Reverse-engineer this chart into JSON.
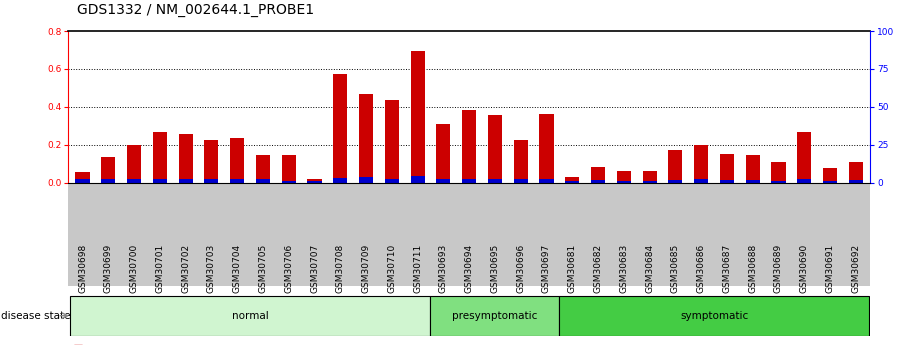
{
  "title": "GDS1332 / NM_002644.1_PROBE1",
  "samples": [
    "GSM30698",
    "GSM30699",
    "GSM30700",
    "GSM30701",
    "GSM30702",
    "GSM30703",
    "GSM30704",
    "GSM30705",
    "GSM30706",
    "GSM30707",
    "GSM30708",
    "GSM30709",
    "GSM30710",
    "GSM30711",
    "GSM30693",
    "GSM30694",
    "GSM30695",
    "GSM30696",
    "GSM30697",
    "GSM30681",
    "GSM30682",
    "GSM30683",
    "GSM30684",
    "GSM30685",
    "GSM30686",
    "GSM30687",
    "GSM30688",
    "GSM30689",
    "GSM30690",
    "GSM30691",
    "GSM30692"
  ],
  "red_values": [
    0.055,
    0.135,
    0.2,
    0.27,
    0.26,
    0.225,
    0.235,
    0.145,
    0.145,
    0.022,
    0.575,
    0.47,
    0.435,
    0.695,
    0.31,
    0.385,
    0.355,
    0.225,
    0.365,
    0.03,
    0.085,
    0.06,
    0.065,
    0.175,
    0.2,
    0.15,
    0.145,
    0.11,
    0.27,
    0.08,
    0.11
  ],
  "blue_values": [
    0.02,
    0.02,
    0.018,
    0.02,
    0.02,
    0.018,
    0.018,
    0.018,
    0.012,
    0.008,
    0.025,
    0.03,
    0.022,
    0.035,
    0.022,
    0.022,
    0.02,
    0.018,
    0.02,
    0.012,
    0.015,
    0.012,
    0.012,
    0.015,
    0.02,
    0.015,
    0.015,
    0.01,
    0.018,
    0.012,
    0.015
  ],
  "groups": [
    {
      "label": "normal",
      "start": 0,
      "end": 13,
      "color": "#d0f5d0"
    },
    {
      "label": "presymptomatic",
      "start": 14,
      "end": 18,
      "color": "#80e080"
    },
    {
      "label": "symptomatic",
      "start": 19,
      "end": 30,
      "color": "#44cc44"
    }
  ],
  "ylim_left": [
    0.0,
    0.8
  ],
  "ylim_right": [
    0.0,
    100.0
  ],
  "yticks_left": [
    0.0,
    0.2,
    0.4,
    0.6,
    0.8
  ],
  "yticks_right": [
    0.0,
    25.0,
    50.0,
    75.0,
    100.0
  ],
  "bar_color_red": "#cc0000",
  "bar_color_blue": "#0000cc",
  "title_fontsize": 10,
  "tick_fontsize": 6.5,
  "label_fontsize": 7.5,
  "xtick_bg_color": "#c8c8c8",
  "fig_width": 9.11,
  "fig_height": 3.45,
  "fig_dpi": 100
}
